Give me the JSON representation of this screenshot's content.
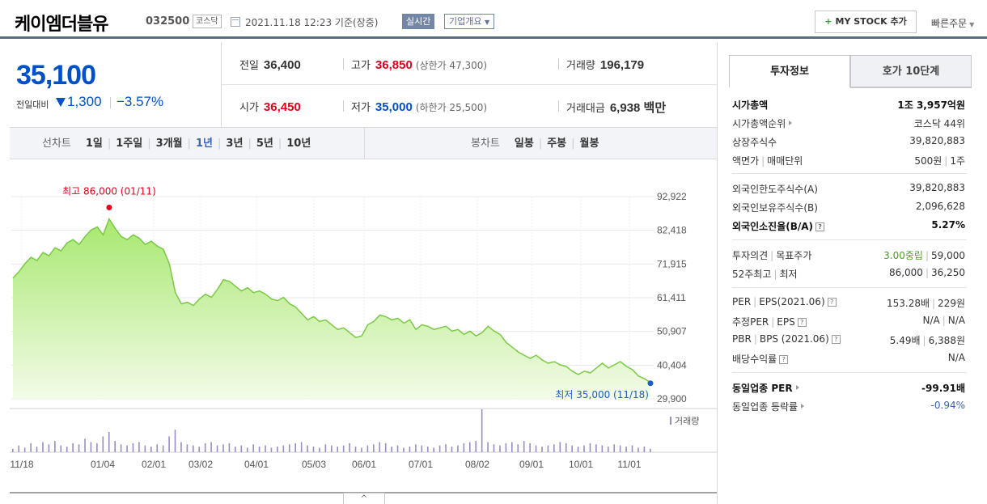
{
  "header": {
    "name": "케이엠더블유",
    "code": "032500",
    "market": "코스닥",
    "datetime": "2021.11.18 12:23  기준(장중)",
    "realtime": "실시간",
    "overview": "기업개요",
    "mystock_plus": "+",
    "mystock": "MY STOCK 추가",
    "quick_order": "빠른주문"
  },
  "price": {
    "current": "35,100",
    "change_label": "전일대비",
    "change": "1,300",
    "rate": "−3.57%"
  },
  "stats": {
    "prev_label": "전일",
    "prev": "36,400",
    "high_label": "고가",
    "high": "36,850",
    "upper_limit": "(상한가 47,300)",
    "volume_label": "거래량",
    "volume": "196,179",
    "open_label": "시가",
    "open": "36,450",
    "low_label": "저가",
    "low": "35,000",
    "lower_limit": "(하한가 25,500)",
    "amount_label": "거래대금",
    "amount": "6,938 백만"
  },
  "periods": {
    "line_head": "선차트",
    "line_options": [
      "1일",
      "1주일",
      "3개월",
      "1년",
      "3년",
      "5년",
      "10년"
    ],
    "line_active": 3,
    "candle_head": "봉차트",
    "candle_options": [
      "일봉",
      "주봉",
      "월봉"
    ]
  },
  "chart_data": {
    "type": "area",
    "x_tick_labels": [
      "11/18",
      "01/04",
      "02/01",
      "03/02",
      "04/01",
      "05/03",
      "06/01",
      "07/01",
      "08/02",
      "09/01",
      "10/01",
      "11/01"
    ],
    "y_tick_labels": [
      "92,922",
      "82,418",
      "71,915",
      "61,411",
      "50,907",
      "40,404",
      "29,900"
    ],
    "ylim": [
      29900,
      92922
    ],
    "values": [
      67500,
      69500,
      72000,
      74000,
      73000,
      75500,
      74500,
      77000,
      76000,
      78500,
      79500,
      78000,
      80500,
      82500,
      83500,
      81000,
      86000,
      83000,
      80500,
      79500,
      81000,
      80000,
      78000,
      79000,
      77500,
      76500,
      72000,
      63000,
      59500,
      60000,
      59000,
      61000,
      62500,
      61500,
      64000,
      67000,
      66500,
      65000,
      63500,
      64500,
      63000,
      63500,
      62500,
      61000,
      60500,
      61500,
      59500,
      58500,
      56500,
      54500,
      55500,
      54000,
      54500,
      53000,
      51500,
      52000,
      50500,
      49000,
      49500,
      53000,
      54000,
      56000,
      55500,
      54500,
      55000,
      53500,
      54500,
      51500,
      53000,
      52500,
      51500,
      52000,
      52500,
      51000,
      51500,
      50000,
      51000,
      49500,
      50500,
      52500,
      51000,
      50000,
      47500,
      46000,
      44500,
      43500,
      42500,
      43500,
      42000,
      41000,
      41500,
      40500,
      40000,
      38500,
      37500,
      38500,
      38000,
      39500,
      41000,
      39500,
      40500,
      41500,
      40000,
      39000,
      37000,
      36200,
      35000
    ],
    "volume": [
      3,
      6,
      4,
      8,
      5,
      9,
      7,
      10,
      6,
      5,
      8,
      7,
      12,
      9,
      8,
      14,
      18,
      10,
      7,
      6,
      8,
      9,
      6,
      5,
      7,
      6,
      14,
      20,
      9,
      7,
      6,
      5,
      8,
      9,
      6,
      7,
      8,
      5,
      6,
      4,
      7,
      5,
      6,
      4,
      5,
      6,
      7,
      8,
      9,
      6,
      5,
      4,
      7,
      6,
      5,
      6,
      8,
      5,
      4,
      6,
      7,
      9,
      8,
      5,
      6,
      4,
      5,
      7,
      6,
      5,
      4,
      6,
      7,
      5,
      6,
      8,
      9,
      10,
      38,
      9,
      7,
      6,
      8,
      9,
      7,
      10,
      8,
      6,
      5,
      6,
      7,
      9,
      8,
      6,
      5,
      6,
      8,
      7,
      6,
      5,
      7,
      6,
      5,
      6,
      4,
      5,
      3
    ],
    "high_annotation": "최고 86,000 (01/11)",
    "low_annotation": "최저 35,000 (11/18)",
    "volume_legend": "거래량",
    "colors": {
      "line": "#7ac943",
      "fill_top": "#a7e86f",
      "fill_bottom": "#f3fbe8",
      "high": "#e6001a",
      "low": "#1c5fc9",
      "volume": "#9b8cc8"
    }
  },
  "collapse": "^",
  "right": {
    "tab_invest": "투자정보",
    "tab_hoga": "호가 10단계",
    "rows": [
      {
        "k": "시가총액",
        "v": "1조 3,957억원",
        "bold": true
      },
      {
        "k": "시가총액순위",
        "v": "코스닥 44위",
        "arrow": true
      },
      {
        "k": "상장주식수",
        "v": "39,820,883"
      },
      {
        "k": "액면가",
        "k2": "매매단위",
        "v": "500원",
        "v2": "1주"
      },
      {
        "k": "외국인한도주식수(A)",
        "v": "39,820,883"
      },
      {
        "k": "외국인보유주식수(B)",
        "v": "2,096,628"
      },
      {
        "k": "외국인소진율(B/A)",
        "v": "5.27%",
        "bold": true,
        "hint": true
      },
      {
        "k": "투자의견",
        "k2": "목표주가",
        "v": "3.00중립",
        "v2": "59,000",
        "green": true
      },
      {
        "k": "52주최고",
        "k2": "최저",
        "v": "86,000",
        "v2": "36,250"
      },
      {
        "k": "PER",
        "k2": "EPS(2021.06)",
        "v": "153.28배",
        "v2": "229원",
        "hint": true
      },
      {
        "k": "추정PER",
        "k2": "EPS",
        "v": "N/A",
        "v2": "N/A",
        "hint": true
      },
      {
        "k": "PBR",
        "k2": "BPS (2021.06)",
        "v": "5.49배",
        "v2": "6,388원",
        "hint": true
      },
      {
        "k": "배당수익률",
        "v": "N/A",
        "hint": true
      },
      {
        "k": "동일업종 PER",
        "v": "-99.91배",
        "bold": true,
        "arrow": true
      },
      {
        "k": "동일업종 등락률",
        "v": "-0.94%",
        "neg": true,
        "arrow": true
      }
    ],
    "hint_glyph": "?"
  }
}
